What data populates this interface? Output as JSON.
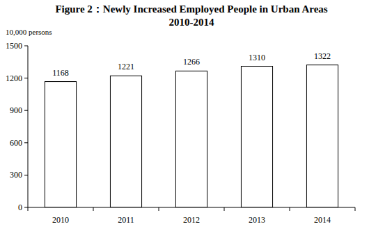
{
  "chart_data": {
    "type": "bar",
    "title": "Figure 2：Newly Increased Employed People in Urban Areas",
    "subtitle": "2010-2014",
    "y_label": "10,000 persons",
    "categories": [
      "2010",
      "2011",
      "2012",
      "2013",
      "2014"
    ],
    "values": [
      1168,
      1221,
      1266,
      1310,
      1322
    ],
    "color": "#ffffff",
    "ylim": [
      0,
      1500
    ],
    "yticks": [
      0,
      300,
      600,
      900,
      1200,
      1500
    ],
    "grid": false,
    "data_labels": true
  }
}
